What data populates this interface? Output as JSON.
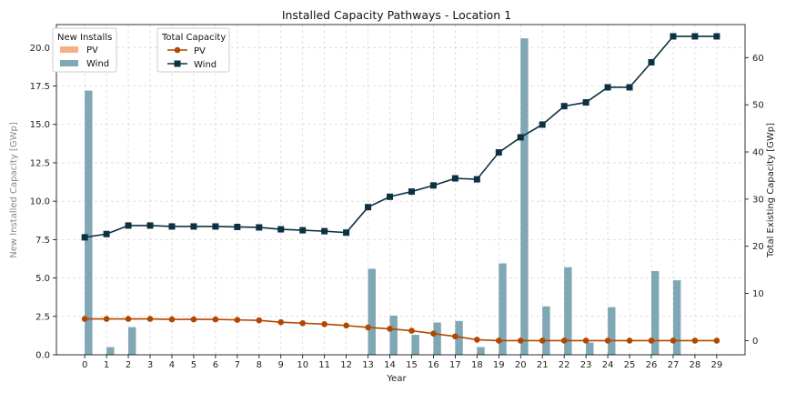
{
  "chart_data": {
    "type": "bar+line",
    "title": "Installed Capacity Pathways - Location 1",
    "xlabel": "Year",
    "ylabel_left": "New Installed Capacity [GWp]",
    "ylabel_right": "Total Existing Capacity [GWp]",
    "x": [
      0,
      1,
      2,
      3,
      4,
      5,
      6,
      7,
      8,
      9,
      10,
      11,
      12,
      13,
      14,
      15,
      16,
      17,
      18,
      19,
      20,
      21,
      22,
      23,
      24,
      25,
      26,
      27,
      28,
      29
    ],
    "ylim_left": [
      0,
      21.5
    ],
    "ylim_right": [
      -3,
      67
    ],
    "yticks_left": [
      "0.0",
      "2.5",
      "5.0",
      "7.5",
      "10.0",
      "12.5",
      "15.0",
      "17.5",
      "20.0"
    ],
    "yticks_right": [
      "0",
      "10",
      "20",
      "30",
      "40",
      "50",
      "60"
    ],
    "grid": true,
    "colors": {
      "pv_bar": "#f4b183",
      "wind_bar": "#7fa7b5",
      "pv_line": "#b34700",
      "wind_line": "#0b3240"
    },
    "legend_new_installs": {
      "title": "New Installs",
      "placement": "upper-left",
      "entries": [
        "PV",
        "Wind"
      ]
    },
    "legend_total_capacity": {
      "title": "Total Capacity",
      "placement": "upper-left",
      "entries": [
        "PV",
        "Wind"
      ]
    },
    "bars": [
      {
        "name": "PV",
        "axis": "left",
        "values": [
          0,
          0,
          0,
          0,
          0,
          0,
          0,
          0,
          0,
          0,
          0,
          0,
          0,
          0,
          0,
          0,
          0,
          0,
          0,
          0,
          0,
          0,
          0,
          0,
          0,
          0,
          0,
          0,
          0,
          0
        ]
      },
      {
        "name": "Wind",
        "axis": "left",
        "values": [
          17.2,
          0.5,
          1.8,
          0,
          0,
          0,
          0,
          0,
          0,
          0,
          0,
          0,
          0,
          5.6,
          2.55,
          1.3,
          2.1,
          2.2,
          0.5,
          5.95,
          20.6,
          3.15,
          5.7,
          0.8,
          3.1,
          0,
          5.45,
          4.85,
          0,
          0
        ]
      }
    ],
    "lines": [
      {
        "name": "PV",
        "axis": "right",
        "marker": "circle",
        "values": [
          4.6,
          4.6,
          4.6,
          4.6,
          4.5,
          4.5,
          4.5,
          4.4,
          4.3,
          3.9,
          3.7,
          3.5,
          3.2,
          2.8,
          2.5,
          2.1,
          1.5,
          0.9,
          0.2,
          0.0,
          0.0,
          0.0,
          0.0,
          0.0,
          0.0,
          0.0,
          0.0,
          0.0,
          0.0,
          0.0
        ]
      },
      {
        "name": "Wind",
        "axis": "right",
        "marker": "square",
        "values": [
          21.9,
          22.6,
          24.4,
          24.4,
          24.2,
          24.2,
          24.2,
          24.1,
          24.0,
          23.6,
          23.4,
          23.2,
          22.9,
          28.3,
          30.5,
          31.6,
          32.9,
          34.4,
          34.2,
          39.9,
          43.1,
          45.8,
          49.7,
          50.5,
          53.7,
          53.7,
          59.0,
          64.5,
          64.5,
          64.5
        ]
      }
    ]
  }
}
